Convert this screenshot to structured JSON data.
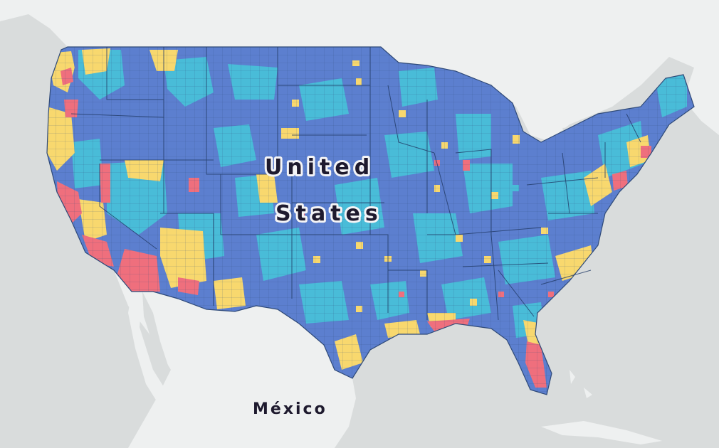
{
  "map": {
    "labels": {
      "country_us_line1": "United",
      "country_us_line2": "States",
      "country_mexico": "México"
    },
    "palette": {
      "ocean": "#d9dcdc",
      "land_other": "#eef0f0",
      "category_dark_blue": "#5c7fcf",
      "category_cyan": "#49bcd8",
      "category_yellow": "#f8d86e",
      "category_pink": "#ef6f7d",
      "county_border": "#2f4a78"
    }
  }
}
